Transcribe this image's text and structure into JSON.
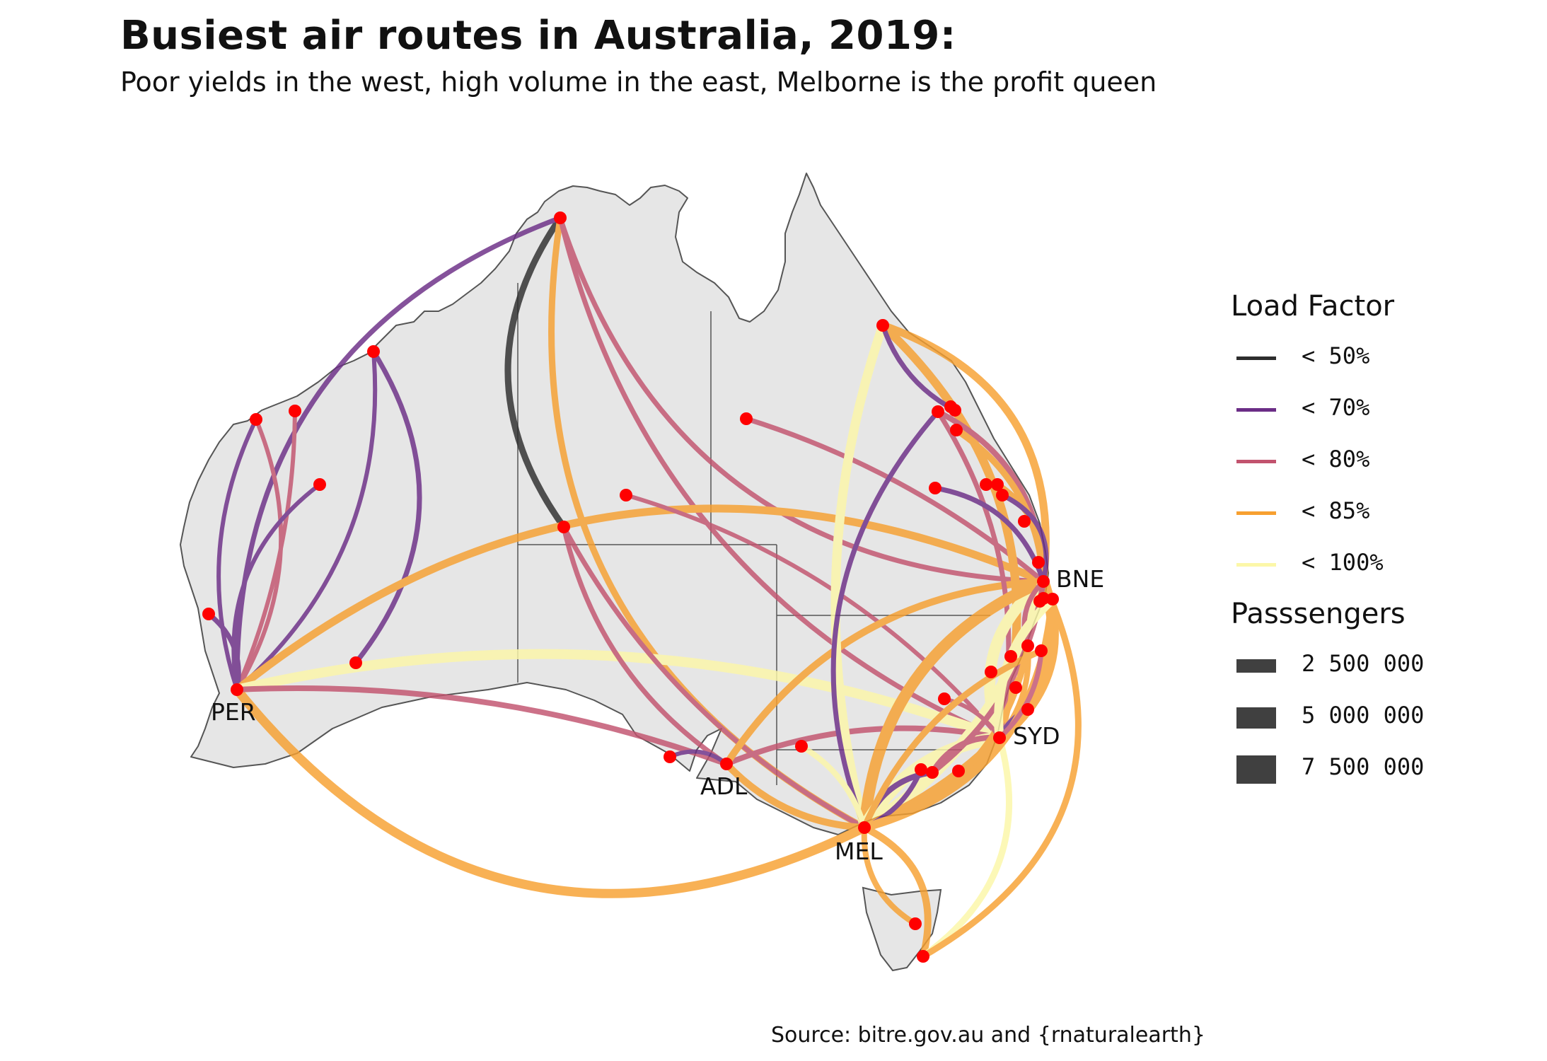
{
  "title": "Busiest air routes in Australia, 2019:",
  "subtitle": "Poor yields in the west, high volume in the east, Melborne is the profit queen",
  "caption": "Source: bitre.gov.au and {rnaturalearth}",
  "map": {
    "land_color": "#e6e6e6",
    "border_color": "#555555",
    "airport_color": "#ff0000",
    "city_labels": [
      "BNE",
      "SYD",
      "MEL",
      "ADL",
      "PER"
    ]
  },
  "legend": {
    "load_factor_title": "Load Factor",
    "load_factor": [
      {
        "label": "< 50%",
        "color": "#2d2d2d"
      },
      {
        "label": "< 70%",
        "color": "#6b2d86"
      },
      {
        "label": "< 80%",
        "color": "#c2536e"
      },
      {
        "label": "< 85%",
        "color": "#f7a030"
      },
      {
        "label": "< 100%",
        "color": "#fcf7a8"
      }
    ],
    "passengers_title": "Passsengers",
    "passengers": [
      {
        "label": "2 500 000",
        "value": 2500000
      },
      {
        "label": "5 000 000",
        "value": 5000000
      },
      {
        "label": "7 500 000",
        "value": 7500000
      }
    ]
  }
}
